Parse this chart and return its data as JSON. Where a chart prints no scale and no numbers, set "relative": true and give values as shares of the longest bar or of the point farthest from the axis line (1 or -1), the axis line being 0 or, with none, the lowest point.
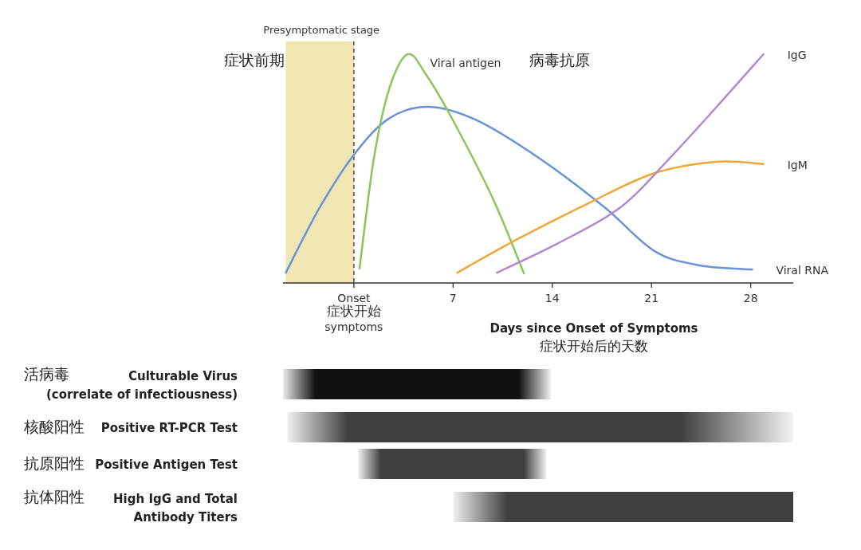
{
  "chart_data": [
    {
      "type": "line",
      "relative": true,
      "xlim": [
        -5,
        31
      ],
      "xticks": [
        {
          "value": 0,
          "label": "Onset\n症状开始\nsymptoms"
        },
        7,
        14,
        21,
        28
      ],
      "xlabel": "Days since Onset of Symptoms\n症状开始后的天数",
      "bands": [
        {
          "axis": "x",
          "from": -4.8,
          "to": 0,
          "label": "Presymptomatic stage",
          "color": "#efe6b3"
        }
      ],
      "ref_lines": [
        {
          "axis": "x",
          "value": 0,
          "line_style": "dashed",
          "color": "#333333"
        }
      ],
      "annotations": [
        "症状前期",
        "病毒抗原"
      ],
      "series": [
        {
          "name": "Viral RNA",
          "color": "#6a92d4",
          "x": [
            -4.8,
            -2.5,
            0,
            2.5,
            5.3,
            8.7,
            13.2,
            17.7,
            21.2,
            24.4,
            28.1
          ],
          "values": [
            0.045,
            0.32,
            0.56,
            0.72,
            0.77,
            0.71,
            0.54,
            0.33,
            0.14,
            0.077,
            0.059
          ]
        },
        {
          "name": "Viral antigen",
          "color": "#8cc65a",
          "x": [
            0.4,
            1.4,
            2.5,
            3.8,
            5.1,
            7.0,
            9.8,
            12.0
          ],
          "values": [
            0.063,
            0.54,
            0.85,
            1.0,
            0.91,
            0.71,
            0.37,
            0.042
          ]
        },
        {
          "name": "IgM",
          "color": "#f0a73a",
          "x": [
            7.3,
            11.5,
            16.6,
            21.2,
            25.6,
            28.9
          ],
          "values": [
            0.045,
            0.19,
            0.35,
            0.48,
            0.53,
            0.52
          ]
        },
        {
          "name": "IgG",
          "color": "#b08ad0",
          "x": [
            10.1,
            14.3,
            18.8,
            22.2,
            25.6,
            28.9
          ],
          "values": [
            0.045,
            0.17,
            0.33,
            0.54,
            0.77,
            1.0
          ]
        }
      ]
    },
    {
      "type": "bar",
      "orientation": "horizontal",
      "xlim": [
        -5,
        31
      ],
      "tick_labels": "y",
      "categories": [
        "活病毒\nCulturable Virus\n(correlate of infectiousness)",
        "核酸阳性\nPositive RT-PCR Test",
        "抗原阳性\nPositive Antigen Test",
        "抗体阳性\nHigh IgG and Total\nAntibody Titers"
      ],
      "base": [
        -5.0,
        -4.7,
        0.3,
        7.0
      ],
      "values": [
        18.9,
        35.7,
        13.3,
        24.0
      ],
      "colors": [
        "#111111",
        "#404040",
        "#404040",
        "#404040"
      ]
    }
  ]
}
